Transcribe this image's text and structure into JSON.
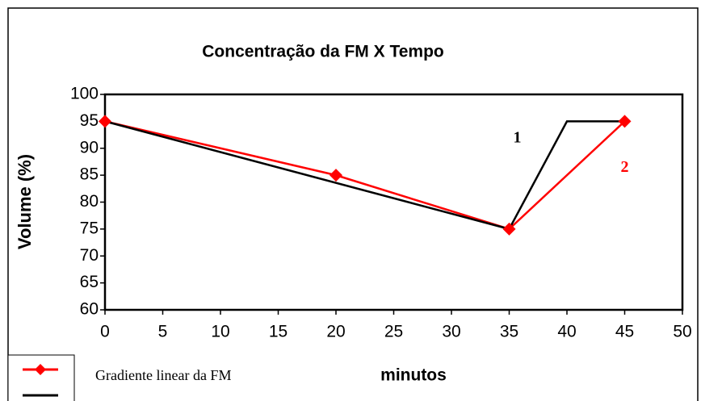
{
  "chart_data": {
    "type": "line",
    "title": "Concentração da FM  X  Tempo",
    "x_label": "minutos",
    "y_label": "Volume (%)",
    "xlim": [
      0,
      50
    ],
    "xticks": [
      0,
      5,
      10,
      15,
      20,
      25,
      30,
      35,
      40,
      45,
      50
    ],
    "ylim": [
      60,
      100
    ],
    "yticks": [
      60,
      65,
      70,
      75,
      80,
      85,
      90,
      95,
      100
    ],
    "series": [
      {
        "name": "Gradiente linear da FM",
        "color": "#ff0000",
        "marker": "diamond",
        "x": [
          0,
          20,
          35,
          45
        ],
        "values": [
          95,
          85,
          75,
          95
        ]
      },
      {
        "color": "#000000",
        "x": [
          0,
          35,
          40,
          45
        ],
        "values": [
          95,
          75,
          95,
          95
        ]
      }
    ],
    "annotations": [
      {
        "text": "1",
        "color": "#000000",
        "x": 35.7,
        "y": 91.8
      },
      {
        "text": "2",
        "color": "#ff0000",
        "x": 45,
        "y": 86.3
      }
    ]
  }
}
